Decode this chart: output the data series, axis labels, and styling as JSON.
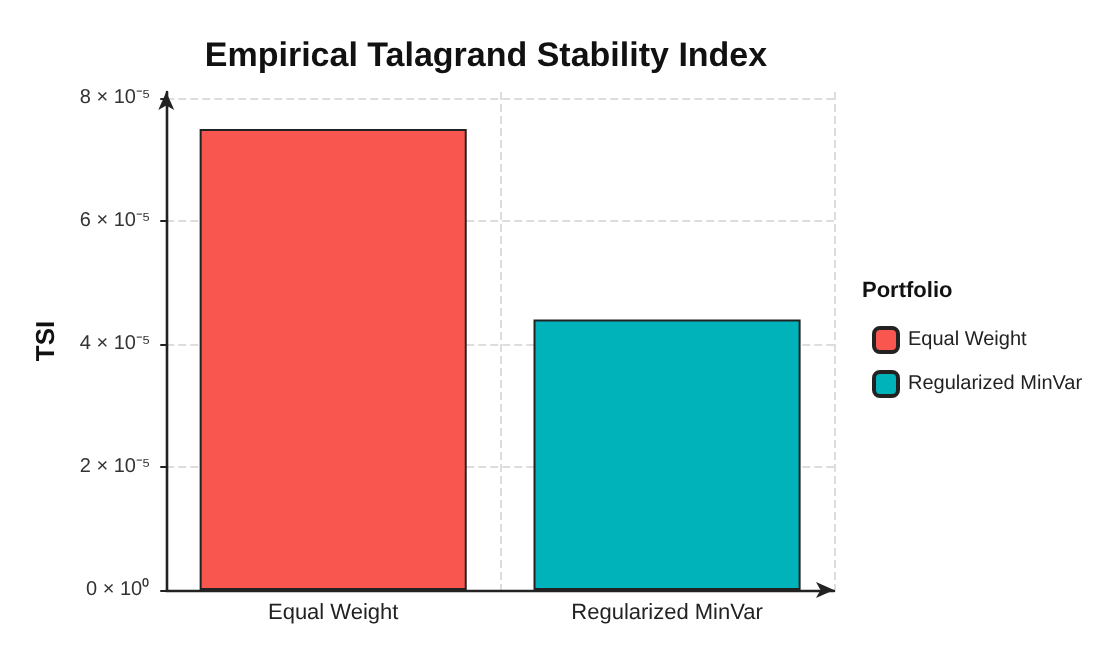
{
  "chart_data": {
    "type": "bar",
    "title": "Empirical Talagrand Stability Index",
    "ylabel": "TSI",
    "legend_title": "Portfolio",
    "categories": [
      "Equal Weight",
      "Regularized MinVar"
    ],
    "series": [
      {
        "name": "Equal Weight",
        "color": "#f8564e",
        "values": [
          7.5e-05,
          null
        ]
      },
      {
        "name": "Regularized MinVar",
        "color": "#00b3bb",
        "values": [
          null,
          4.4e-05
        ]
      }
    ],
    "ylim": [
      0,
      8.1e-05
    ],
    "yticks": [
      {
        "value": 0,
        "label": "0 × 10⁰"
      },
      {
        "value": 2e-05,
        "label": "2 × 10⁻⁵"
      },
      {
        "value": 4e-05,
        "label": "4 × 10⁻⁵"
      },
      {
        "value": 6e-05,
        "label": "6 × 10⁻⁵"
      },
      {
        "value": 8e-05,
        "label": "8 × 10⁻⁵"
      }
    ],
    "grid": true,
    "legend": "right"
  }
}
